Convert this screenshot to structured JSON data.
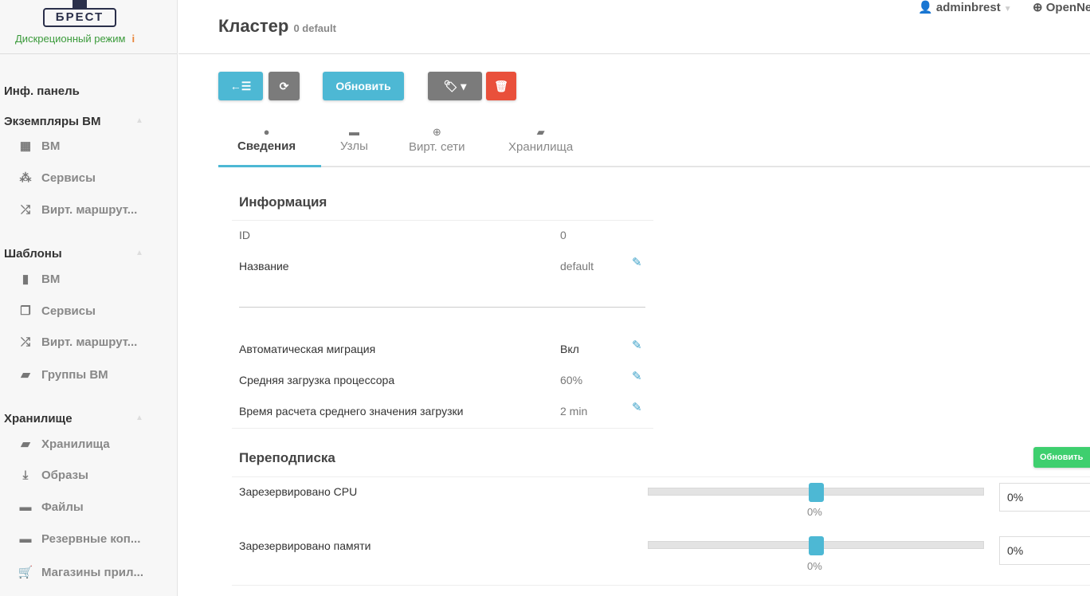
{
  "sidebar": {
    "logo": "БРЕСТ",
    "mode": "Дискреционный режим",
    "mode_info": "i",
    "dashboard": "Инф. панель",
    "groups": [
      {
        "title": "Экземпляры ВМ",
        "items": [
          {
            "label": "ВМ",
            "icon": "grid-icon"
          },
          {
            "label": "Сервисы",
            "icon": "cubes-icon"
          },
          {
            "label": "Вирт. маршрут...",
            "icon": "shuffle-icon"
          }
        ]
      },
      {
        "title": "Шаблоны",
        "items": [
          {
            "label": "ВМ",
            "icon": "file-icon"
          },
          {
            "label": "Сервисы",
            "icon": "files-icon"
          },
          {
            "label": "Вирт. маршрут...",
            "icon": "shuffle-icon"
          },
          {
            "label": "Группы ВМ",
            "icon": "folder-open-icon"
          }
        ]
      },
      {
        "title": "Хранилище",
        "items": [
          {
            "label": "Хранилища",
            "icon": "folder-open-icon"
          },
          {
            "label": "Образы",
            "icon": "download-icon"
          },
          {
            "label": "Файлы",
            "icon": "archive-icon"
          },
          {
            "label": "Резервные коп...",
            "icon": "archive-icon"
          },
          {
            "label": "Магазины прил...",
            "icon": "cart-icon"
          }
        ]
      }
    ]
  },
  "header": {
    "title": "Кластер",
    "subtitle": "0 default",
    "user": "adminbrest",
    "zone": "OpenNebula"
  },
  "toolbar": {
    "update": "Обновить"
  },
  "tabs": [
    {
      "label": "Сведения",
      "icon": "info-icon"
    },
    {
      "label": "Узлы",
      "icon": "server-icon"
    },
    {
      "label": "Вирт. сети",
      "icon": "globe-icon"
    },
    {
      "label": "Хранилища",
      "icon": "folder-open-icon"
    }
  ],
  "info": {
    "title": "Информация",
    "rows": [
      {
        "label": "ID",
        "value": "0"
      },
      {
        "label": "Название",
        "value": "default"
      }
    ],
    "rows2": [
      {
        "label": "Автоматическая миграция",
        "value": "Вкл"
      },
      {
        "label": "Средняя загрузка процессора",
        "value": "60%"
      },
      {
        "label": "Время расчета среднего значения загрузки",
        "value": "2 min"
      }
    ]
  },
  "overcommit": {
    "title": "Переподписка",
    "update": "Обновить",
    "cpu": {
      "label": "Зарезервировано CPU",
      "value_pct": 0,
      "display": "0%",
      "input": "0%"
    },
    "mem": {
      "label": "Зарезервировано памяти",
      "value_pct": 0,
      "display": "0%",
      "input": "0%"
    }
  },
  "colors": {
    "primary": "#4db8d4",
    "danger": "#e9503b",
    "success": "#3ecf6e",
    "grey": "#7b7b7b"
  }
}
